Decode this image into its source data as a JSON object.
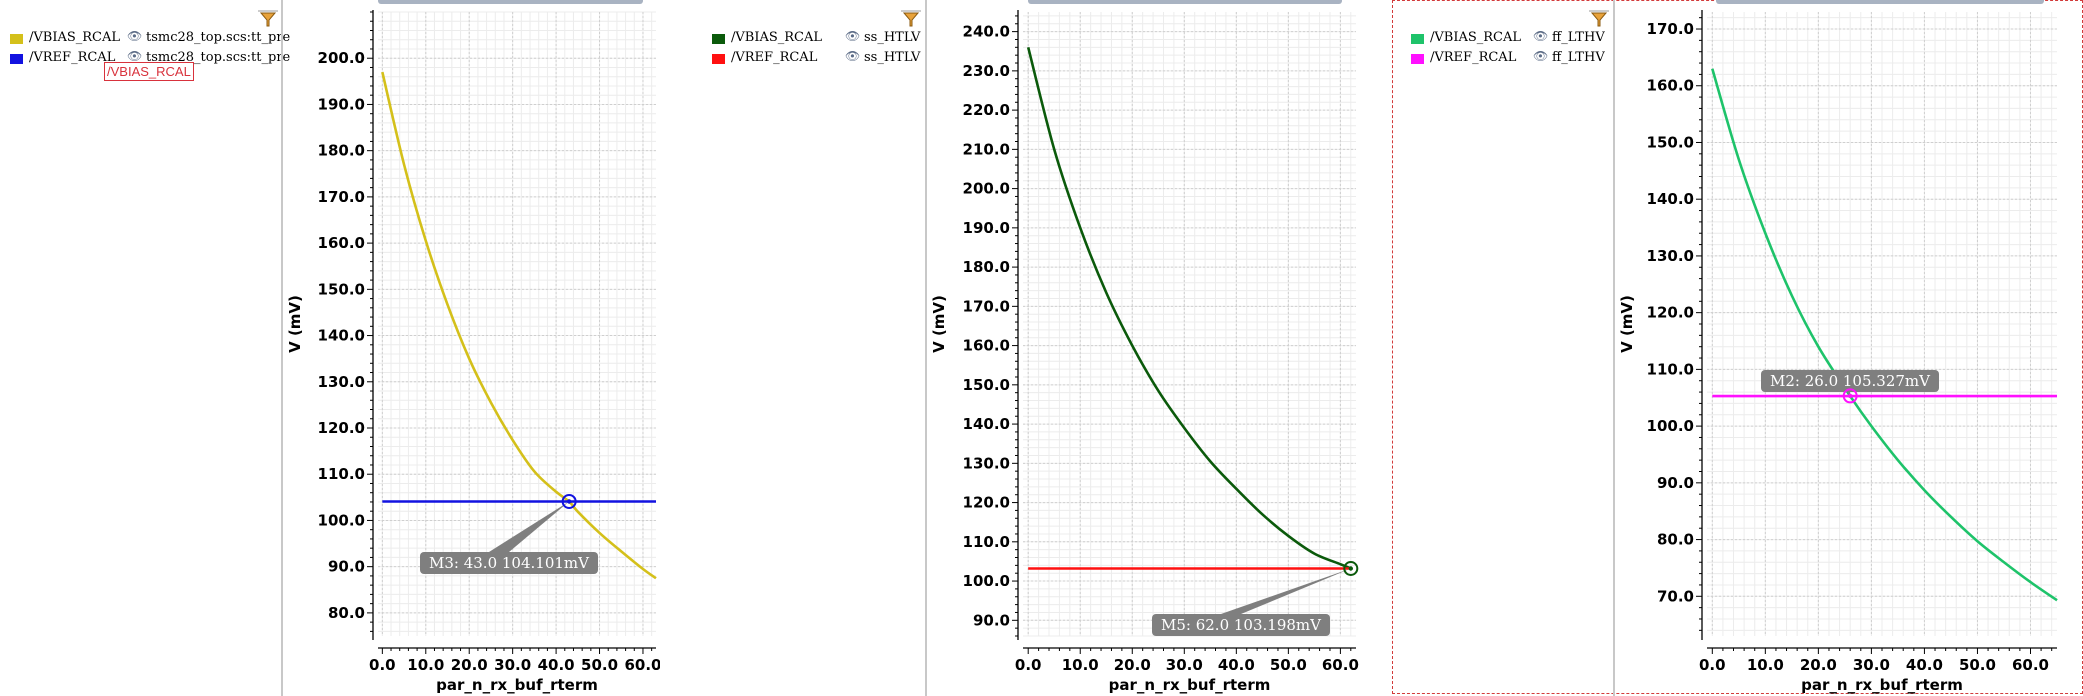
{
  "panels": [
    {
      "id": "tt",
      "legend": [
        {
          "signal": "/VBIAS_RCAL",
          "color": "#d4c01a",
          "source": "tsmc28_top.scs:tt_pre"
        },
        {
          "signal": "/VREF_RCAL",
          "color": "#1212e0",
          "source": "tsmc28_top.scs:tt_pre"
        }
      ],
      "tooltip": "/VBIAS_RCAL",
      "marker_label": "M3: 43.0 104.101mV",
      "chart_data": {
        "type": "line",
        "xlabel": "par_n_rx_buf_rterm",
        "ylabel": "V (mV)",
        "xlim": [
          -1,
          63
        ],
        "ylim": [
          75,
          210
        ],
        "xticks": [
          0,
          10,
          20,
          30,
          40,
          50,
          60
        ],
        "yticks": [
          80,
          90,
          100,
          110,
          120,
          130,
          140,
          150,
          160,
          170,
          180,
          190,
          200
        ],
        "grid": true,
        "series": [
          {
            "name": "/VBIAS_RCAL",
            "color": "#d4c01a",
            "x": [
              0,
              5,
              10,
              15,
              20,
              25,
              30,
              35,
              40,
              43,
              45,
              50,
              55,
              60,
              63
            ],
            "y": [
              197,
              177,
              160.5,
              146.7,
              135,
              125.5,
              117.4,
              110.6,
              106.2,
              104.1,
              101.9,
              97.3,
              93.3,
              89.5,
              87.5
            ]
          },
          {
            "name": "/VREF_RCAL",
            "color": "#1212e0",
            "x": [
              0,
              63
            ],
            "y": [
              104.1,
              104.1
            ]
          }
        ],
        "marker": {
          "name": "M3",
          "x": 43.0,
          "y": 104.101,
          "color": "#1212e0"
        }
      }
    },
    {
      "id": "ss",
      "legend": [
        {
          "signal": "/VBIAS_RCAL",
          "color": "#0b5a0b",
          "source": "ss_HTLV"
        },
        {
          "signal": "/VREF_RCAL",
          "color": "#ff1010",
          "source": "ss_HTLV"
        }
      ],
      "marker_label": "M5: 62.0 103.198mV",
      "chart_data": {
        "type": "line",
        "xlabel": "par_n_rx_buf_rterm",
        "ylabel": "V (mV)",
        "xlim": [
          -1,
          63
        ],
        "ylim": [
          86,
          245
        ],
        "xticks": [
          0,
          10,
          20,
          30,
          40,
          50,
          60
        ],
        "yticks": [
          90,
          100,
          110,
          120,
          130,
          140,
          150,
          160,
          170,
          180,
          190,
          200,
          210,
          220,
          230,
          240
        ],
        "grid": true,
        "series": [
          {
            "name": "/VBIAS_RCAL",
            "color": "#0b5a0b",
            "x": [
              0,
              5,
              10,
              15,
              20,
              25,
              30,
              35,
              40,
              45,
              50,
              55,
              60,
              62
            ],
            "y": [
              236,
              210,
              190,
              173.5,
              160,
              148.5,
              139,
              130.5,
              123.5,
              117,
              111.5,
              107,
              104.3,
              103.2
            ]
          },
          {
            "name": "/VREF_RCAL",
            "color": "#ff1010",
            "x": [
              0,
              62
            ],
            "y": [
              103.2,
              103.2
            ]
          }
        ],
        "marker": {
          "name": "M5",
          "x": 62.0,
          "y": 103.198,
          "color": "#0b5a0b"
        }
      }
    },
    {
      "id": "ff",
      "legend": [
        {
          "signal": "/VBIAS_RCAL",
          "color": "#1ec36a",
          "source": "ff_LTHV"
        },
        {
          "signal": "/VREF_RCAL",
          "color": "#ff10ff",
          "source": "ff_LTHV"
        }
      ],
      "marker_label": "M2: 26.0 105.327mV",
      "chart_data": {
        "type": "line",
        "xlabel": "par_n_rx_buf_rterm",
        "ylabel": "V (mV)",
        "xlim": [
          -1,
          65
        ],
        "ylim": [
          63,
          173
        ],
        "xticks": [
          0,
          10,
          20,
          30,
          40,
          50,
          60
        ],
        "yticks": [
          70,
          80,
          90,
          100,
          110,
          120,
          130,
          140,
          150,
          160,
          170
        ],
        "grid": true,
        "series": [
          {
            "name": "/VBIAS_RCAL",
            "color": "#1ec36a",
            "x": [
              0,
              5,
              10,
              15,
              20,
              26,
              30,
              35,
              40,
              45,
              50,
              55,
              60,
              65
            ],
            "y": [
              163,
              147,
              134,
              123,
              114,
              105.3,
              100,
              94,
              88.7,
              84,
              79.7,
              76,
              72.5,
              69.3
            ]
          },
          {
            "name": "/VREF_RCAL",
            "color": "#ff10ff",
            "x": [
              0,
              65
            ],
            "y": [
              105.3,
              105.3
            ]
          }
        ],
        "marker": {
          "name": "M2",
          "x": 26.0,
          "y": 105.327,
          "color": "#ff10ff"
        }
      }
    }
  ]
}
